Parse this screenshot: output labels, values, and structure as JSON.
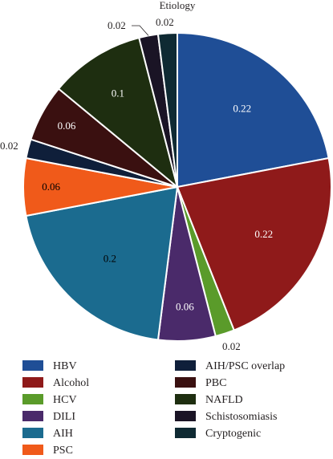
{
  "chart_data": {
    "type": "pie",
    "title": "Etiology",
    "slices": [
      {
        "name": "HBV",
        "value": 0.22,
        "label": "0.22",
        "color": "#1f4e96"
      },
      {
        "name": "Alcohol",
        "value": 0.22,
        "label": "0.22",
        "color": "#8f1a1a"
      },
      {
        "name": "HCV",
        "value": 0.02,
        "label": "0.02",
        "color": "#5a9b2a"
      },
      {
        "name": "DILI",
        "value": 0.06,
        "label": "0.06",
        "color": "#4a2a6a"
      },
      {
        "name": "AIH",
        "value": 0.2,
        "label": "0.2",
        "color": "#1b6b8f"
      },
      {
        "name": "PSC",
        "value": 0.06,
        "label": "0.06",
        "color": "#f05a1a"
      },
      {
        "name": "AIH/PSC overlap",
        "value": 0.02,
        "label": "0.02",
        "color": "#0f1f3a"
      },
      {
        "name": "PBC",
        "value": 0.06,
        "label": "0.06",
        "color": "#3a1010"
      },
      {
        "name": "NAFLD",
        "value": 0.1,
        "label": "0.1",
        "color": "#1e2e10"
      },
      {
        "name": "Schistosomiasis",
        "value": 0.02,
        "label": "0.02",
        "color": "#1a1425"
      },
      {
        "name": "Cryptogenic",
        "value": 0.02,
        "label": "0.02",
        "color": "#0f2a33"
      }
    ],
    "legend_position": "bottom"
  }
}
